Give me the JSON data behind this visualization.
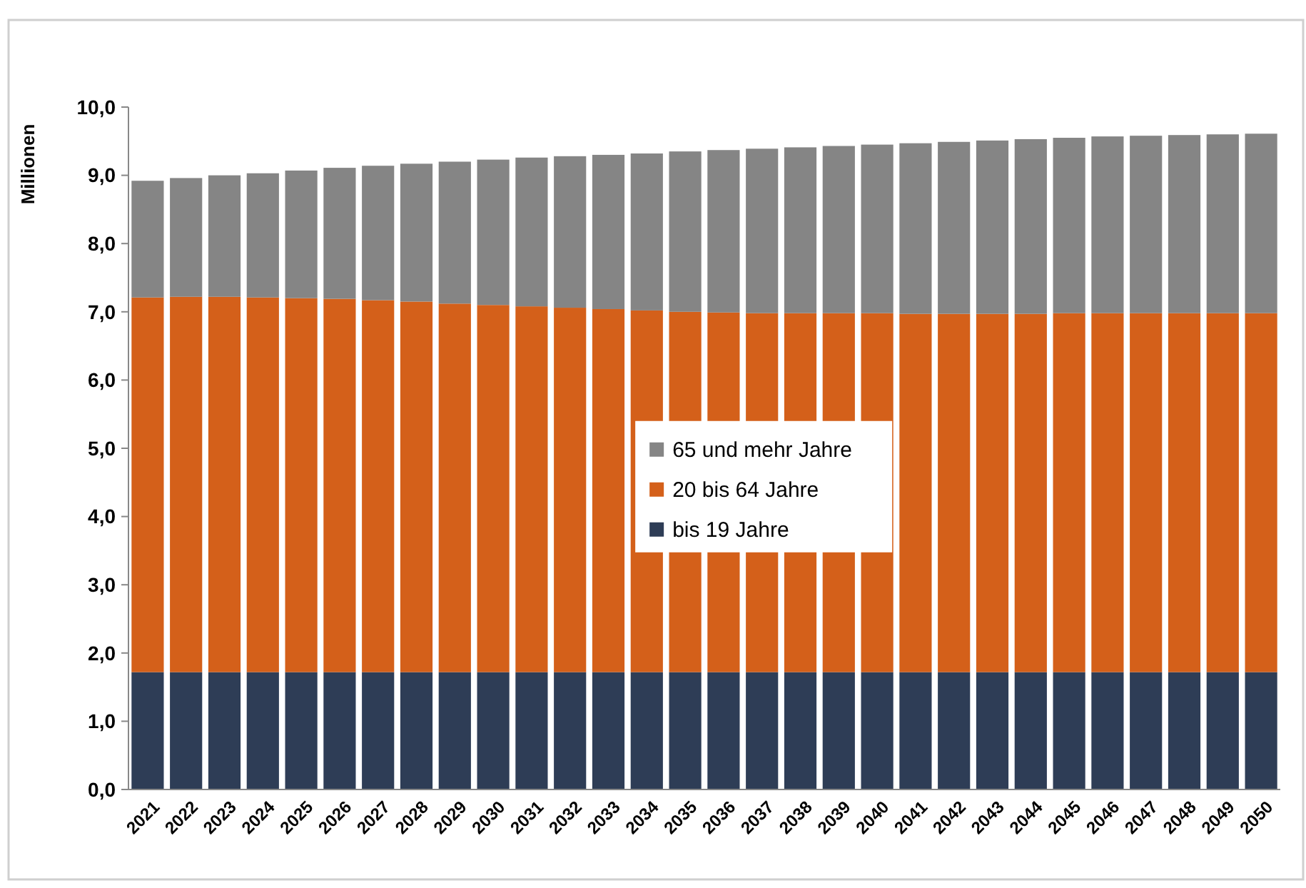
{
  "chart_data": {
    "type": "bar",
    "stacked": true,
    "ylabel": "Millionen",
    "categories": [
      "2021",
      "2022",
      "2023",
      "2024",
      "2025",
      "2026",
      "2027",
      "2028",
      "2029",
      "2030",
      "2031",
      "2032",
      "2033",
      "2034",
      "2035",
      "2036",
      "2037",
      "2038",
      "2039",
      "2040",
      "2041",
      "2042",
      "2043",
      "2044",
      "2045",
      "2046",
      "2047",
      "2048",
      "2049",
      "2050"
    ],
    "series": [
      {
        "name": "bis 19 Jahre",
        "color": "#2e3d56",
        "values": [
          1.72,
          1.72,
          1.72,
          1.72,
          1.72,
          1.72,
          1.72,
          1.72,
          1.72,
          1.72,
          1.72,
          1.72,
          1.72,
          1.72,
          1.72,
          1.72,
          1.72,
          1.72,
          1.72,
          1.72,
          1.72,
          1.72,
          1.72,
          1.72,
          1.72,
          1.72,
          1.72,
          1.72,
          1.72,
          1.72
        ]
      },
      {
        "name": "20 bis 64 Jahre",
        "color": "#d4601a",
        "values": [
          5.49,
          5.5,
          5.5,
          5.49,
          5.48,
          5.47,
          5.45,
          5.43,
          5.4,
          5.38,
          5.36,
          5.34,
          5.32,
          5.3,
          5.28,
          5.27,
          5.26,
          5.26,
          5.26,
          5.26,
          5.25,
          5.25,
          5.25,
          5.25,
          5.26,
          5.26,
          5.26,
          5.26,
          5.26,
          5.26
        ]
      },
      {
        "name": "65 und mehr Jahre",
        "color": "#858585",
        "values": [
          1.71,
          1.74,
          1.78,
          1.82,
          1.87,
          1.92,
          1.97,
          2.02,
          2.08,
          2.13,
          2.18,
          2.22,
          2.26,
          2.3,
          2.35,
          2.38,
          2.41,
          2.43,
          2.45,
          2.47,
          2.5,
          2.52,
          2.54,
          2.56,
          2.57,
          2.59,
          2.6,
          2.61,
          2.62,
          2.63
        ]
      }
    ],
    "ylim": [
      0,
      10
    ],
    "yticks": [
      {
        "value": 0,
        "label": "0,0"
      },
      {
        "value": 1,
        "label": "1,0"
      },
      {
        "value": 2,
        "label": "2,0"
      },
      {
        "value": 3,
        "label": "3,0"
      },
      {
        "value": 4,
        "label": "4,0"
      },
      {
        "value": 5,
        "label": "5,0"
      },
      {
        "value": 6,
        "label": "6,0"
      },
      {
        "value": 7,
        "label": "7,0"
      },
      {
        "value": 8,
        "label": "8,0"
      },
      {
        "value": 9,
        "label": "9,0"
      },
      {
        "value": 10,
        "label": "10,0"
      }
    ],
    "grid": false,
    "legend": "center"
  }
}
